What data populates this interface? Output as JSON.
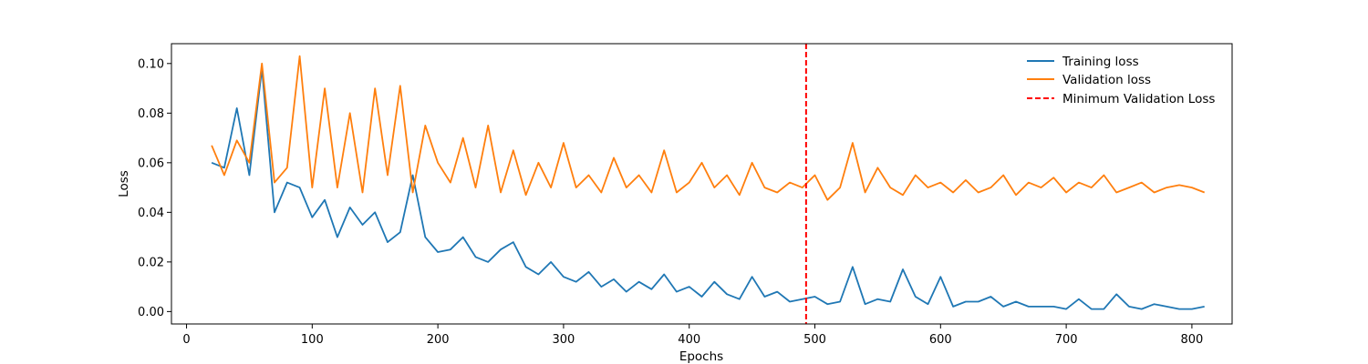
{
  "chart_data": {
    "type": "line",
    "title": "",
    "xlabel": "Epochs",
    "ylabel": "Loss",
    "xlim": [
      -12,
      832
    ],
    "ylim": [
      -0.005,
      0.108
    ],
    "xticks": [
      0,
      100,
      200,
      300,
      400,
      500,
      600,
      700,
      800
    ],
    "yticks": [
      0.0,
      0.02,
      0.04,
      0.06,
      0.08,
      0.1
    ],
    "ytick_labels": [
      "0.00",
      "0.02",
      "0.04",
      "0.06",
      "0.08",
      "0.10"
    ],
    "grid": false,
    "legend": "top-right",
    "series": [
      {
        "name": "Training loss",
        "color": "#1f77b4",
        "x_start": 20,
        "x_step": 10,
        "values": [
          0.06,
          0.058,
          0.082,
          0.055,
          0.098,
          0.04,
          0.052,
          0.05,
          0.038,
          0.045,
          0.03,
          0.042,
          0.035,
          0.04,
          0.028,
          0.032,
          0.055,
          0.03,
          0.024,
          0.025,
          0.03,
          0.022,
          0.02,
          0.025,
          0.028,
          0.018,
          0.015,
          0.02,
          0.014,
          0.012,
          0.016,
          0.01,
          0.013,
          0.008,
          0.012,
          0.009,
          0.015,
          0.008,
          0.01,
          0.006,
          0.012,
          0.007,
          0.005,
          0.014,
          0.006,
          0.008,
          0.004,
          0.005,
          0.006,
          0.003,
          0.004,
          0.018,
          0.003,
          0.005,
          0.004,
          0.017,
          0.006,
          0.003,
          0.014,
          0.002,
          0.004,
          0.004,
          0.006,
          0.002,
          0.004,
          0.002,
          0.002,
          0.002,
          0.001,
          0.005,
          0.001,
          0.001,
          0.007,
          0.002,
          0.001,
          0.003,
          0.002,
          0.001,
          0.001,
          0.002
        ]
      },
      {
        "name": "Validation loss",
        "color": "#ff7f0e",
        "x_start": 20,
        "x_step": 10,
        "values": [
          0.067,
          0.055,
          0.069,
          0.06,
          0.1,
          0.052,
          0.058,
          0.103,
          0.05,
          0.09,
          0.05,
          0.08,
          0.048,
          0.09,
          0.055,
          0.091,
          0.048,
          0.075,
          0.06,
          0.052,
          0.07,
          0.05,
          0.075,
          0.048,
          0.065,
          0.047,
          0.06,
          0.05,
          0.068,
          0.05,
          0.055,
          0.048,
          0.062,
          0.05,
          0.055,
          0.048,
          0.065,
          0.048,
          0.052,
          0.06,
          0.05,
          0.055,
          0.047,
          0.06,
          0.05,
          0.048,
          0.052,
          0.05,
          0.055,
          0.045,
          0.05,
          0.068,
          0.048,
          0.058,
          0.05,
          0.047,
          0.055,
          0.05,
          0.052,
          0.048,
          0.053,
          0.048,
          0.05,
          0.055,
          0.047,
          0.052,
          0.05,
          0.054,
          0.048,
          0.052,
          0.05,
          0.055,
          0.048,
          0.05,
          0.052,
          0.048,
          0.05,
          0.051,
          0.05,
          0.048
        ]
      },
      {
        "name": "Minimum Validation Loss",
        "color": "#ff0000",
        "style": "dashed",
        "x": 493
      }
    ]
  }
}
